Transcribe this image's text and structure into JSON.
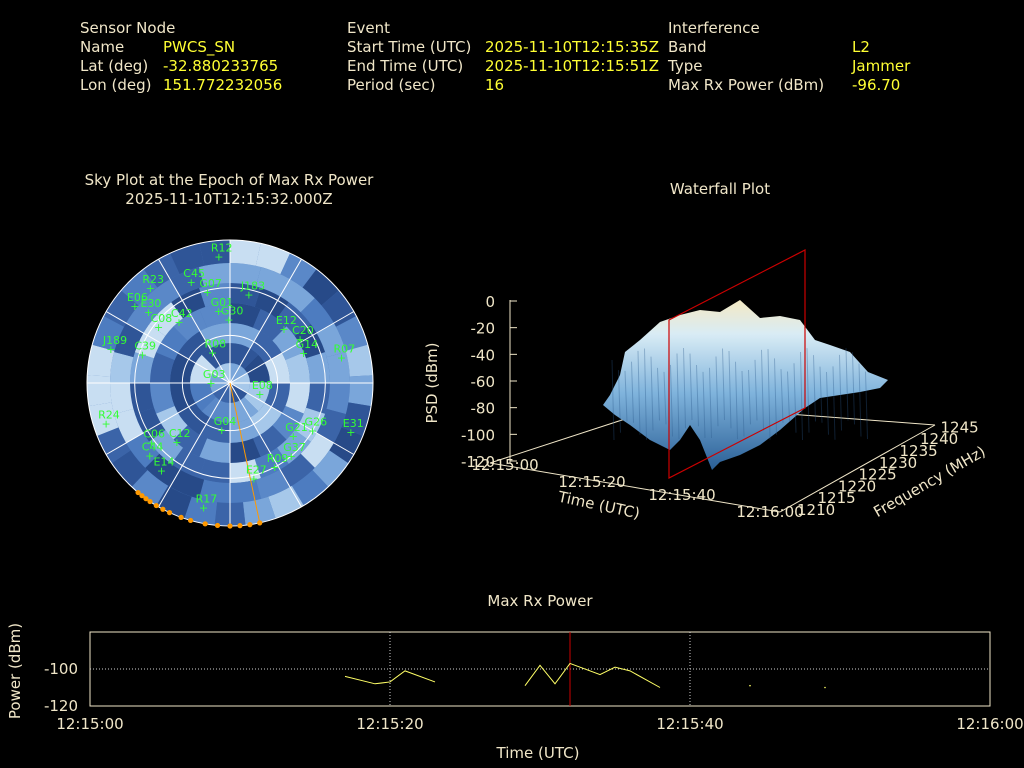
{
  "header": {
    "sensor": {
      "heading": "Sensor Node",
      "name_label": "Name",
      "name_value": "PWCS_SN",
      "lat_label": "Lat (deg)",
      "lat_value": "-32.880233765",
      "lon_label": "Lon (deg)",
      "lon_value": "151.772232056"
    },
    "event": {
      "heading": "Event",
      "start_label": "Start Time (UTC)",
      "start_value": "2025-11-10T12:15:35Z",
      "end_label": "End Time (UTC)",
      "end_value": "2025-11-10T12:15:51Z",
      "period_label": "Period (sec)",
      "period_value": "16"
    },
    "interference": {
      "heading": "Interference",
      "band_label": "Band",
      "band_value": "L2",
      "type_label": "Type",
      "type_value": "Jammer",
      "power_label": "Max Rx Power (dBm)",
      "power_value": "-96.70"
    }
  },
  "colors": {
    "label": "#f0e6c8",
    "value": "#ffff33",
    "sat": "#33ff33",
    "jam": "#ff9900",
    "marker": "#cc0000",
    "line": "#ffff66"
  },
  "chart_data": [
    {
      "type": "scatter",
      "subtype": "polar-sky-plot",
      "title": "Sky Plot at the Epoch of Max Rx Power",
      "subtitle": "2025-11-10T12:15:32.000Z",
      "satellites": [
        {
          "id": "R12",
          "az": 355,
          "el": 10
        },
        {
          "id": "C45",
          "az": 339,
          "el": 22
        },
        {
          "id": "G07",
          "az": 346,
          "el": 31
        },
        {
          "id": "J183",
          "az": 12,
          "el": 33
        },
        {
          "id": "R23",
          "az": 320,
          "el": 12
        },
        {
          "id": "E06",
          "az": 309,
          "el": 13
        },
        {
          "id": "E30",
          "az": 311,
          "el": 22
        },
        {
          "id": "C08",
          "az": 308,
          "el": 33
        },
        {
          "id": "C42",
          "az": 320,
          "el": 40
        },
        {
          "id": "G01",
          "az": 351,
          "el": 44
        },
        {
          "id": "G30",
          "az": 359,
          "el": 50
        },
        {
          "id": "J189",
          "az": 286,
          "el": 12
        },
        {
          "id": "C39",
          "az": 288,
          "el": 32
        },
        {
          "id": "E12",
          "az": 45,
          "el": 42
        },
        {
          "id": "C20",
          "az": 58,
          "el": 38
        },
        {
          "id": "G14",
          "az": 68,
          "el": 40
        },
        {
          "id": "R07",
          "az": 77,
          "el": 18
        },
        {
          "id": "R08",
          "az": 330,
          "el": 68
        },
        {
          "id": "G03",
          "az": 270,
          "el": 78
        },
        {
          "id": "E08",
          "az": 110,
          "el": 70
        },
        {
          "id": "R24",
          "az": 252,
          "el": 8
        },
        {
          "id": "G04",
          "az": 190,
          "el": 60
        },
        {
          "id": "C12",
          "az": 222,
          "el": 40
        },
        {
          "id": "C06",
          "az": 233,
          "el": 28
        },
        {
          "id": "C44",
          "az": 228,
          "el": 22
        },
        {
          "id": "E31",
          "az": 112,
          "el": 8
        },
        {
          "id": "G26",
          "az": 120,
          "el": 30
        },
        {
          "id": "G21",
          "az": 130,
          "el": 38
        },
        {
          "id": "G37",
          "az": 140,
          "el": 30
        },
        {
          "id": "R09",
          "az": 152,
          "el": 30
        },
        {
          "id": "E27",
          "az": 166,
          "el": 28
        },
        {
          "id": "E14",
          "az": 218,
          "el": 20
        },
        {
          "id": "R17",
          "az": 192,
          "el": 10
        }
      ],
      "jammer_track_az": [
        168,
        172,
        176,
        180,
        185,
        190,
        196,
        200,
        205,
        208,
        211,
        214,
        216,
        218,
        220
      ],
      "radial_rings_deg": [
        30,
        60
      ],
      "grid": true
    },
    {
      "type": "area",
      "subtype": "3d-waterfall",
      "title": "Waterfall Plot",
      "xlabel": "Time (UTC)",
      "ylabel": "Frequency (MHz)",
      "zlabel": "PSD (dBm)",
      "x_ticks": [
        "12:15:00",
        "12:15:20",
        "12:15:40",
        "12:16:00"
      ],
      "y_ticks": [
        "1210",
        "1215",
        "1220",
        "1225",
        "1230",
        "1235",
        "1240",
        "1245"
      ],
      "z_ticks": [
        "0",
        "-20",
        "-40",
        "-60",
        "-80",
        "-100",
        "-120"
      ],
      "zlim": [
        -120,
        0
      ],
      "marker_time": "12:15:32"
    },
    {
      "type": "line",
      "title": "Max Rx Power",
      "xlabel": "Time (UTC)",
      "ylabel": "Power (dBm)",
      "ylim": [
        -120,
        -80
      ],
      "x_ticks": [
        "12:15:00",
        "12:15:20",
        "12:15:40",
        "12:16:00"
      ],
      "y_ticks": [
        "-100",
        "-120"
      ],
      "marker_x_sec": 32,
      "series": [
        {
          "segments": [
            [
              [
                17,
                -104
              ],
              [
                19,
                -108
              ],
              [
                20,
                -107
              ],
              [
                21,
                -101
              ],
              [
                23,
                -107
              ]
            ],
            [
              [
                29,
                -109
              ],
              [
                30,
                -98
              ],
              [
                31,
                -108
              ],
              [
                32,
                -97
              ],
              [
                34,
                -103
              ],
              [
                35,
                -99
              ],
              [
                36,
                -101
              ],
              [
                38,
                -110
              ]
            ]
          ]
        }
      ],
      "dots": [
        [
          44,
          -109
        ],
        [
          49,
          -110
        ]
      ]
    }
  ]
}
